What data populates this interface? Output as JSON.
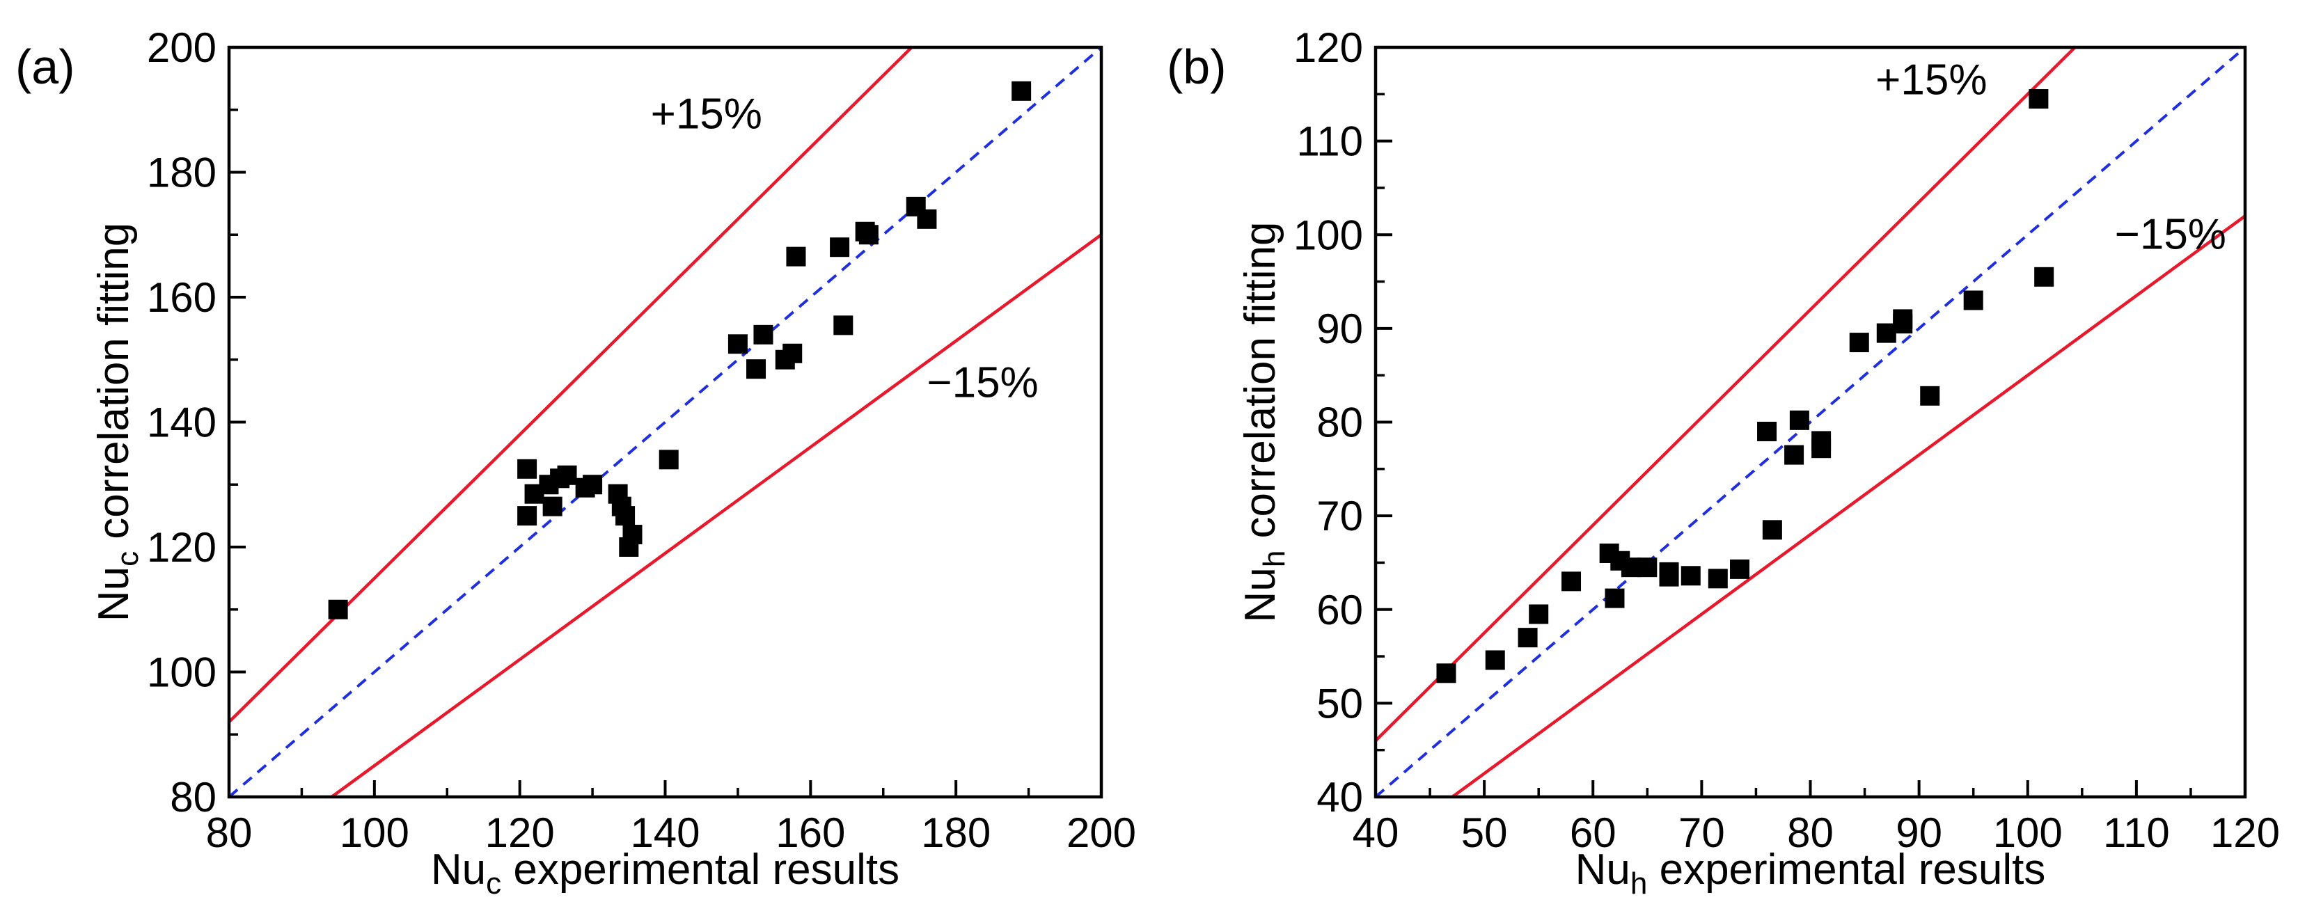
{
  "colors": {
    "diagonal": "#1f2fe0",
    "bound": "#e8192c",
    "marker": "#000000",
    "axis": "#000000"
  },
  "chart_data": [
    {
      "id": "a",
      "type": "scatter",
      "panel_label": "(a)",
      "xlabel": {
        "main": "Nu",
        "sub": "c",
        "rest": " experimental results"
      },
      "ylabel": {
        "main": "Nu",
        "sub": "c",
        "rest": " correlation fitting"
      },
      "xlim": [
        80,
        200
      ],
      "ylim": [
        80,
        200
      ],
      "xticks": [
        "80",
        "100",
        "120",
        "140",
        "160",
        "180",
        "200"
      ],
      "yticks": [
        "80",
        "100",
        "120",
        "140",
        "160",
        "180",
        "200"
      ],
      "tick_values": [
        80,
        100,
        120,
        140,
        160,
        180,
        200
      ],
      "minor_step": 10,
      "plus_label": "+15%",
      "minus_label": "−15%",
      "plus_label_at": [
        138,
        187
      ],
      "minus_label_at": [
        176,
        144
      ],
      "points": [
        [
          95,
          110
        ],
        [
          121,
          125
        ],
        [
          121,
          132.5
        ],
        [
          122,
          128.5
        ],
        [
          124,
          130
        ],
        [
          124.5,
          126.5
        ],
        [
          125.5,
          131
        ],
        [
          126.5,
          131.5
        ],
        [
          129,
          129.5
        ],
        [
          130,
          130
        ],
        [
          133.5,
          128.5
        ],
        [
          134,
          126.5
        ],
        [
          134.5,
          125
        ],
        [
          135,
          120
        ],
        [
          135.5,
          122
        ],
        [
          140.5,
          134
        ],
        [
          150,
          152.5
        ],
        [
          152.5,
          148.5
        ],
        [
          153.5,
          154
        ],
        [
          156.5,
          150
        ],
        [
          157.5,
          151
        ],
        [
          158,
          166.5
        ],
        [
          164,
          168
        ],
        [
          164.5,
          155.5
        ],
        [
          167.5,
          170.5
        ],
        [
          168,
          170
        ],
        [
          174.5,
          174.5
        ],
        [
          176,
          172.5
        ],
        [
          189,
          193
        ]
      ]
    },
    {
      "id": "b",
      "type": "scatter",
      "panel_label": "(b)",
      "xlabel": {
        "main": "Nu",
        "sub": "h",
        "rest": " experimental results"
      },
      "ylabel": {
        "main": "Nu",
        "sub": "h",
        "rest": " correlation fitting"
      },
      "xlim": [
        40,
        120
      ],
      "ylim": [
        40,
        120
      ],
      "xticks": [
        "40",
        "50",
        "60",
        "70",
        "80",
        "90",
        "100",
        "110",
        "120"
      ],
      "yticks": [
        "40",
        "50",
        "60",
        "70",
        "80",
        "90",
        "100",
        "110",
        "120"
      ],
      "tick_values": [
        40,
        50,
        60,
        70,
        80,
        90,
        100,
        110,
        120
      ],
      "minor_step": 5,
      "plus_label": "+15%",
      "minus_label": "−15%",
      "plus_label_at": [
        86,
        115
      ],
      "minus_label_at": [
        108,
        98.5
      ],
      "points": [
        [
          46.5,
          53.2
        ],
        [
          51,
          54.6
        ],
        [
          54,
          57
        ],
        [
          55,
          59.5
        ],
        [
          58,
          63
        ],
        [
          61.5,
          66
        ],
        [
          62,
          61.2
        ],
        [
          62.5,
          65.2
        ],
        [
          63.5,
          64.5
        ],
        [
          65,
          64.5
        ],
        [
          67,
          63.5
        ],
        [
          67,
          64
        ],
        [
          69,
          63.6
        ],
        [
          71.5,
          63.3
        ],
        [
          73.5,
          64.3
        ],
        [
          76,
          79
        ],
        [
          76.5,
          68.5
        ],
        [
          78.5,
          76.5
        ],
        [
          79,
          80.2
        ],
        [
          81,
          77.2
        ],
        [
          81,
          78
        ],
        [
          84.5,
          88.5
        ],
        [
          87,
          89.5
        ],
        [
          88.5,
          90.5
        ],
        [
          88.5,
          91
        ],
        [
          91,
          82.8
        ],
        [
          95,
          93
        ],
        [
          101,
          114.5
        ],
        [
          101.5,
          95.5
        ]
      ]
    }
  ]
}
